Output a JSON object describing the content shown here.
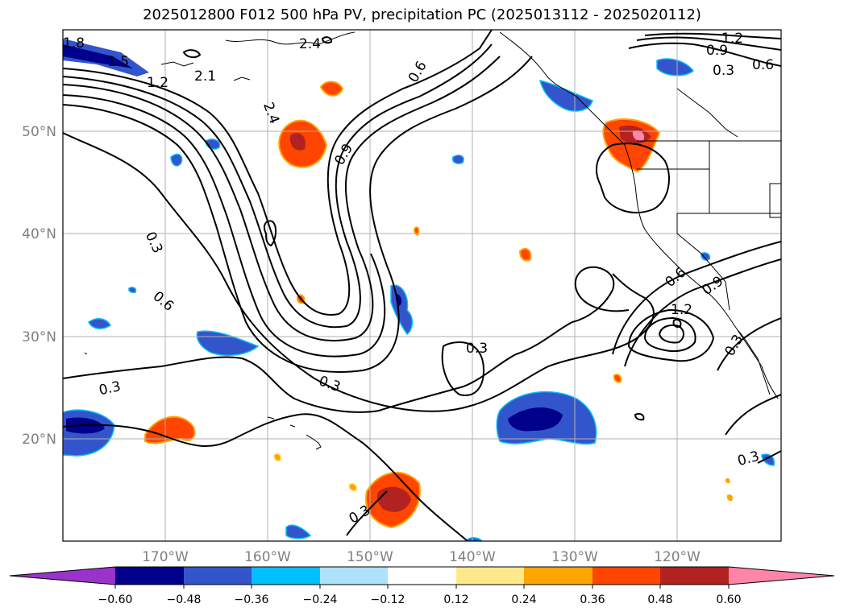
{
  "title": "2025012800 F012 500 hPa PV, precipitation PC (2025013112 - 2025020112)",
  "lon_ticks": [
    "170°W",
    "160°W",
    "150°W",
    "140°W",
    "130°W",
    "120°W"
  ],
  "lat_ticks": [
    "50°N",
    "40°N",
    "30°N",
    "20°N"
  ],
  "colorbar": {
    "ticks": [
      "−0.60",
      "−0.48",
      "−0.36",
      "−0.24",
      "−0.12",
      "0.12",
      "0.24",
      "0.36",
      "0.48",
      "0.60"
    ],
    "colors": [
      "#9933cc",
      "#00008b",
      "#3355cc",
      "#00bfff",
      "#aee2fa",
      "#ffffff",
      "#ffe88a",
      "#ffa500",
      "#ff4500",
      "#b22222",
      "#ff85a8"
    ]
  },
  "contour_labels": [
    "1.8",
    "1.5",
    "1.2",
    "2.1",
    "2.4",
    "2.4",
    "0.9",
    "0.6",
    "0.3",
    "0.6",
    "0.3",
    "0.3",
    "0.3",
    "1.2",
    "0.9",
    "0.6",
    "0.3",
    "0.6",
    "0.9",
    "1.2",
    "0.3",
    "0.3",
    "0.3"
  ]
}
